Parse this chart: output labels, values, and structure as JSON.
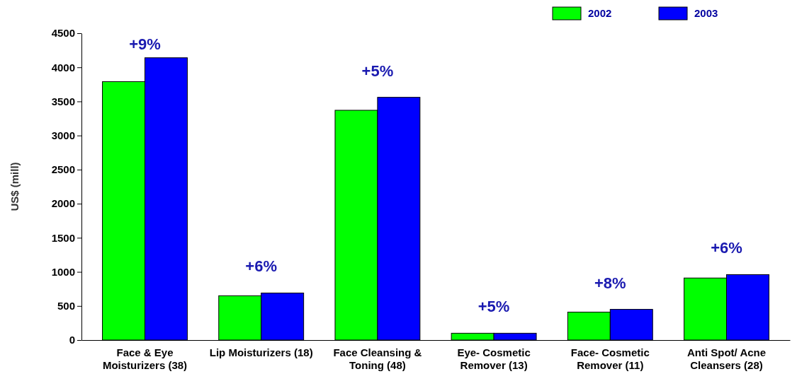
{
  "chart_data": {
    "type": "bar",
    "ylabel": "US$ (mill)",
    "categories": [
      "Face & Eye Moisturizers (38)",
      "Lip Moisturizers (18)",
      "Face Cleansing & Toning (48)",
      "Eye- Cosmetic Remover (13)",
      "Face- Cosmetic Remover (11)",
      "Anti Spot/ Acne Cleansers (28)"
    ],
    "series": [
      {
        "name": "2002",
        "color": "#00ff00",
        "values": [
          3790,
          650,
          3370,
          100,
          410,
          910
        ]
      },
      {
        "name": "2003",
        "color": "#0000ff",
        "values": [
          4140,
          690,
          3560,
          100,
          450,
          960
        ]
      }
    ],
    "ylim": [
      0,
      4500
    ],
    "yticks": [
      0,
      500,
      1000,
      1500,
      2000,
      2500,
      3000,
      3500,
      4000,
      4500
    ],
    "legend": "top right",
    "annotations": [
      "+9%",
      "+6%",
      "+5%",
      "+5%",
      "+8%",
      "+6%"
    ]
  }
}
